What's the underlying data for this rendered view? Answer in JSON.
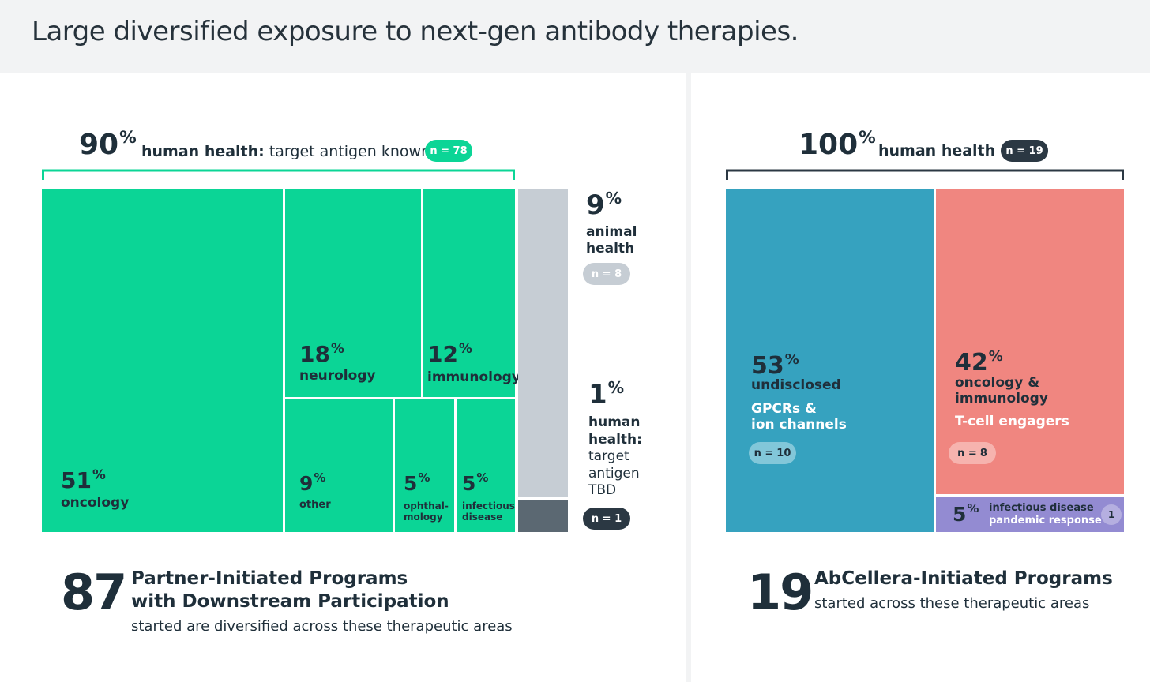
{
  "page": {
    "title": "Large diversified exposure to next-gen antibody therapies."
  },
  "colors": {
    "green": "#0bd596",
    "gray_light": "#c6cdd4",
    "gray_dark": "#5b6872",
    "blue": "#36a2bf",
    "coral": "#f08680",
    "purple": "#938bd2",
    "navy": "#2b3843"
  },
  "left": {
    "header": {
      "pct": "90",
      "label_bold": "human health:",
      "label_rest": "target antigen known",
      "pill": "n = 78"
    },
    "side_top": {
      "pct": "9",
      "label": "animal health",
      "label_line1": "animal",
      "label_line2": "health",
      "pill": "n = 8"
    },
    "side_bottom": {
      "pct": "1",
      "label_line1": "human",
      "label_line2": "health:",
      "label_line3": "target",
      "label_line4": "antigen",
      "label_line5": "TBD",
      "pill": "n = 1"
    },
    "footer": {
      "number": "87",
      "title_line1": "Partner-Initiated Programs",
      "title_line2": "with Downstream Participation",
      "subtitle": "started are diversified across these therapeutic areas"
    }
  },
  "right": {
    "header": {
      "pct": "100",
      "label": "human health",
      "pill": "n = 19"
    },
    "footer": {
      "number": "19",
      "title": "AbCellera-Initiated Programs",
      "subtitle": "started across these therapeutic areas"
    }
  },
  "chart_data": [
    {
      "type": "treemap",
      "title": "Partner-Initiated Programs with Downstream Participation",
      "total_programs": 87,
      "groups": [
        {
          "name": "human health: target antigen known",
          "percent": 90,
          "n": 78,
          "children": [
            {
              "name": "oncology",
              "percent": 51
            },
            {
              "name": "neurology",
              "percent": 18
            },
            {
              "name": "immunology",
              "percent": 12
            },
            {
              "name": "other",
              "percent": 9
            },
            {
              "name": "ophthal-mology",
              "line1": "ophthal-",
              "line2": "mology",
              "percent": 5
            },
            {
              "name": "infectious disease",
              "line1": "infectious",
              "line2": "disease",
              "percent": 5
            }
          ]
        },
        {
          "name": "animal health",
          "percent": 9,
          "n": 8
        },
        {
          "name": "human health: target antigen TBD",
          "percent": 1,
          "n": 1
        }
      ]
    },
    {
      "type": "treemap",
      "title": "AbCellera-Initiated Programs",
      "total_programs": 19,
      "groups": [
        {
          "name": "human health",
          "percent": 100,
          "n": 19,
          "children": [
            {
              "name": "undisclosed",
              "detail_line1": "GPCRs &",
              "detail_line2": "ion channels",
              "percent": 53,
              "n": 10
            },
            {
              "name_line1": "oncology &",
              "name_line2": "immunology",
              "name": "oncology & immunology",
              "detail": "T-cell engagers",
              "percent": 42,
              "n": 8
            },
            {
              "name": "infectious disease",
              "detail": "pandemic response",
              "percent": 5,
              "n": 1
            }
          ]
        }
      ]
    }
  ]
}
